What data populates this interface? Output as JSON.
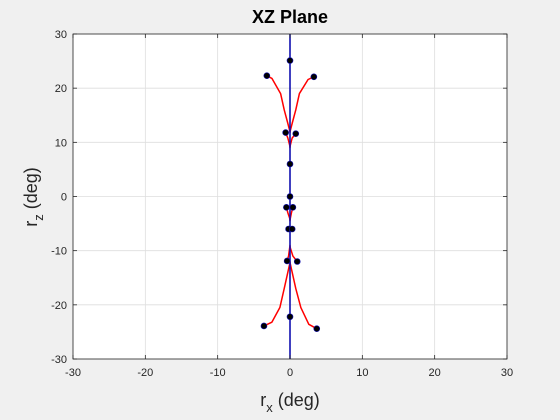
{
  "chart_data": {
    "type": "scatter",
    "title": "XZ Plane",
    "xlabel": {
      "base": "r",
      "sub": "x",
      "rest": " (deg)"
    },
    "ylabel": {
      "base": "r",
      "sub": "z",
      "rest": " (deg)"
    },
    "xlim": [
      -30,
      30
    ],
    "ylim": [
      -30,
      30
    ],
    "xticks": [
      -30,
      -20,
      -10,
      0,
      10,
      20,
      30
    ],
    "yticks": [
      -30,
      -20,
      -10,
      0,
      10,
      20,
      30
    ],
    "xtick_labels": [
      "-30",
      "-20",
      "-10",
      "0",
      "10",
      "20",
      "30"
    ],
    "ytick_labels": [
      "-30",
      "-20",
      "-10",
      "0",
      "10",
      "20",
      "30"
    ],
    "grid": true,
    "colors": {
      "points": "#000000",
      "red_curves": "#ff0000",
      "blue_line": "#1010b0",
      "axes_bg": "#ffffff",
      "grid": "#dedede"
    },
    "blue_line": {
      "x": [
        0,
        0
      ],
      "y": [
        -30,
        30
      ]
    },
    "points": [
      {
        "x": -3.2,
        "y": 22.3
      },
      {
        "x": 0.0,
        "y": 25.1
      },
      {
        "x": 3.3,
        "y": 22.1
      },
      {
        "x": -0.6,
        "y": 11.8
      },
      {
        "x": 0.8,
        "y": 11.6
      },
      {
        "x": 0.0,
        "y": 6.0
      },
      {
        "x": 0.0,
        "y": 0.0
      },
      {
        "x": -0.5,
        "y": -2.0
      },
      {
        "x": 0.4,
        "y": -2.0
      },
      {
        "x": -0.2,
        "y": -6.0
      },
      {
        "x": 0.3,
        "y": -6.0
      },
      {
        "x": -0.4,
        "y": -11.9
      },
      {
        "x": 1.0,
        "y": -12.0
      },
      {
        "x": 0.0,
        "y": -22.2
      },
      {
        "x": -3.6,
        "y": -23.9
      },
      {
        "x": 3.7,
        "y": -24.4
      }
    ],
    "red_curves": [
      {
        "x": [
          -3.2,
          -2.5,
          -1.3,
          -0.8,
          -0.3,
          -0.05,
          0.0
        ],
        "y": [
          22.3,
          21.8,
          19.0,
          16.0,
          13.5,
          12.2,
          11.8
        ]
      },
      {
        "x": [
          3.3,
          2.5,
          1.3,
          0.8,
          0.3,
          0.05,
          0.0
        ],
        "y": [
          22.1,
          21.6,
          19.0,
          16.0,
          13.5,
          12.2,
          11.8
        ]
      },
      {
        "x": [
          -0.6,
          -0.3,
          -0.05,
          0.0,
          0.05,
          0.3,
          0.8
        ],
        "y": [
          11.8,
          10.8,
          9.5,
          9.0,
          9.5,
          10.8,
          11.6
        ]
      },
      {
        "x": [
          -0.5,
          -0.3,
          -0.05,
          0.0,
          0.05,
          0.2,
          0.4
        ],
        "y": [
          -2.0,
          -3.0,
          -4.0,
          -4.5,
          -4.0,
          -3.0,
          -2.0
        ]
      },
      {
        "x": [
          -0.4,
          -0.2,
          -0.05,
          0.0,
          0.05,
          0.4,
          1.0
        ],
        "y": [
          -11.9,
          -11.0,
          -9.5,
          -9.0,
          -9.5,
          -11.0,
          -12.0
        ]
      },
      {
        "x": [
          -3.6,
          -2.5,
          -1.4,
          -0.8,
          -0.3,
          -0.05,
          0.0
        ],
        "y": [
          -23.9,
          -23.2,
          -20.5,
          -17.0,
          -14.0,
          -12.5,
          -12.0
        ]
      },
      {
        "x": [
          3.7,
          2.6,
          1.5,
          0.8,
          0.3,
          0.05,
          0.0
        ],
        "y": [
          -24.4,
          -23.6,
          -20.5,
          -17.0,
          -14.0,
          -12.5,
          -12.0
        ]
      }
    ]
  }
}
